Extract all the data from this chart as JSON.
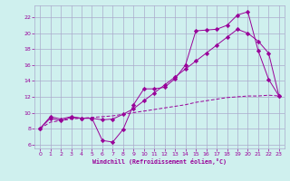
{
  "xlabel": "Windchill (Refroidissement éolien,°C)",
  "bg_color": "#cff0ee",
  "grid_color": "#aaaacc",
  "line_color": "#990099",
  "xlim": [
    -0.5,
    23.5
  ],
  "ylim": [
    5.5,
    23.5
  ],
  "xticks": [
    0,
    1,
    2,
    3,
    4,
    5,
    6,
    7,
    8,
    9,
    10,
    11,
    12,
    13,
    14,
    15,
    16,
    17,
    18,
    19,
    20,
    21,
    22,
    23
  ],
  "yticks": [
    6,
    8,
    10,
    12,
    14,
    16,
    18,
    20,
    22
  ],
  "series1_x": [
    0,
    1,
    2,
    3,
    4,
    5,
    6,
    7,
    8,
    9,
    10,
    11,
    12,
    13,
    14,
    15,
    16,
    17,
    18,
    19,
    20,
    21,
    22,
    23
  ],
  "series1_y": [
    8.0,
    9.5,
    9.2,
    9.5,
    9.3,
    9.3,
    6.5,
    6.3,
    7.9,
    11.0,
    13.0,
    13.0,
    13.2,
    14.3,
    16.0,
    20.3,
    20.4,
    20.5,
    21.0,
    22.3,
    22.7,
    17.8,
    14.2,
    12.1
  ],
  "series2_x": [
    0,
    1,
    2,
    3,
    4,
    5,
    6,
    7,
    8,
    9,
    10,
    11,
    12,
    13,
    14,
    15,
    16,
    17,
    18,
    19,
    20,
    21,
    22,
    23
  ],
  "series2_y": [
    8.0,
    8.8,
    9.0,
    9.2,
    9.3,
    9.4,
    9.5,
    9.6,
    9.8,
    10.0,
    10.2,
    10.4,
    10.6,
    10.8,
    11.0,
    11.3,
    11.5,
    11.7,
    11.9,
    12.0,
    12.1,
    12.1,
    12.2,
    12.1
  ],
  "series3_x": [
    0,
    1,
    2,
    3,
    4,
    5,
    6,
    7,
    8,
    9,
    10,
    11,
    12,
    13,
    14,
    15,
    16,
    17,
    18,
    19,
    20,
    21,
    22,
    23
  ],
  "series3_y": [
    8.0,
    9.3,
    9.0,
    9.4,
    9.3,
    9.3,
    9.1,
    9.2,
    9.8,
    10.5,
    11.5,
    12.5,
    13.5,
    14.5,
    15.5,
    16.5,
    17.5,
    18.5,
    19.5,
    20.5,
    20.0,
    19.0,
    17.5,
    12.1
  ]
}
